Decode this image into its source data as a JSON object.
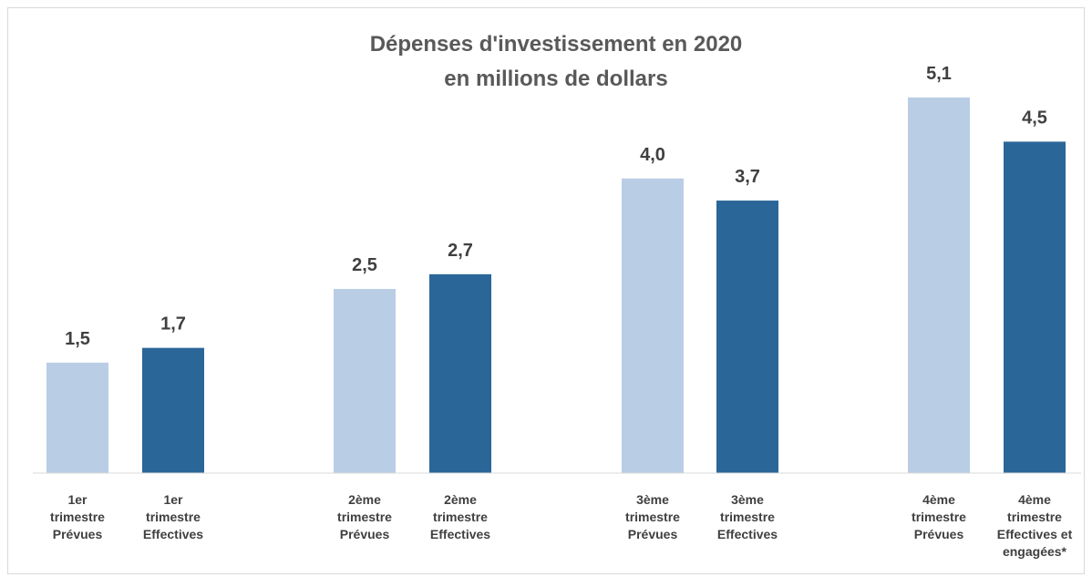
{
  "chart_data": {
    "type": "bar",
    "title_lines": [
      "Dépenses d'investissement en 2020",
      "en millions de dollars"
    ],
    "categories": [
      [
        "1er",
        "trimestre",
        "Prévues"
      ],
      [
        "1er",
        "trimestre",
        "Effectives"
      ],
      [
        "2ème",
        "trimestre",
        "Prévues"
      ],
      [
        "2ème",
        "trimestre",
        "Effectives"
      ],
      [
        "3ème",
        "trimestre",
        "Prévues"
      ],
      [
        "3ème",
        "trimestre",
        "Effectives"
      ],
      [
        "4ème",
        "trimestre",
        "Prévues"
      ],
      [
        "4ème",
        "trimestre",
        "Effectives et",
        "engagées*"
      ]
    ],
    "values": [
      1.5,
      1.7,
      2.5,
      2.7,
      4.0,
      3.7,
      5.1,
      4.5
    ],
    "value_labels": [
      "1,5",
      "1,7",
      "2,5",
      "2,7",
      "4,0",
      "3,7",
      "5,1",
      "4,5"
    ],
    "bar_colors": [
      "#b9cde5",
      "#2b6699",
      "#b9cde5",
      "#2b6699",
      "#b9cde5",
      "#2b6699",
      "#b9cde5",
      "#2b6699"
    ],
    "ylim": [
      0,
      5.1
    ],
    "grid": false,
    "legend": "none"
  }
}
